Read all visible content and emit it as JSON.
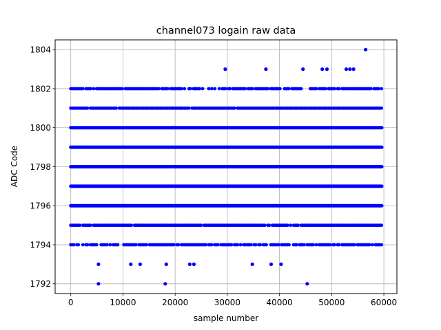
{
  "chart_data": {
    "type": "scatter",
    "title": "channel073 logain raw data",
    "xlabel": "sample number",
    "ylabel": "ADC Code",
    "xlim": [
      -3000,
      62500
    ],
    "ylim": [
      1791.5,
      1804.5
    ],
    "xticks": [
      0,
      10000,
      20000,
      30000,
      40000,
      50000,
      60000
    ],
    "yticks": [
      1792,
      1794,
      1796,
      1798,
      1800,
      1802,
      1804
    ],
    "grid": true,
    "marker_color": "#0000ff",
    "x_extent": [
      0,
      59600
    ],
    "dense_levels": [
      1796,
      1797,
      1798,
      1799,
      1800
    ],
    "medium_levels": [
      1794,
      1795,
      1801,
      1802
    ],
    "outliers": [
      {
        "x": 5300,
        "y": 1793
      },
      {
        "x": 11500,
        "y": 1793
      },
      {
        "x": 13300,
        "y": 1793
      },
      {
        "x": 18300,
        "y": 1793
      },
      {
        "x": 22800,
        "y": 1793
      },
      {
        "x": 23600,
        "y": 1793
      },
      {
        "x": 34800,
        "y": 1793
      },
      {
        "x": 38400,
        "y": 1793
      },
      {
        "x": 40300,
        "y": 1793
      },
      {
        "x": 5300,
        "y": 1792
      },
      {
        "x": 18100,
        "y": 1792
      },
      {
        "x": 45300,
        "y": 1792
      },
      {
        "x": 29600,
        "y": 1803
      },
      {
        "x": 37400,
        "y": 1803
      },
      {
        "x": 44500,
        "y": 1803
      },
      {
        "x": 48200,
        "y": 1803
      },
      {
        "x": 49100,
        "y": 1803
      },
      {
        "x": 52800,
        "y": 1803
      },
      {
        "x": 53500,
        "y": 1803
      },
      {
        "x": 54200,
        "y": 1803
      },
      {
        "x": 56500,
        "y": 1804
      }
    ]
  }
}
